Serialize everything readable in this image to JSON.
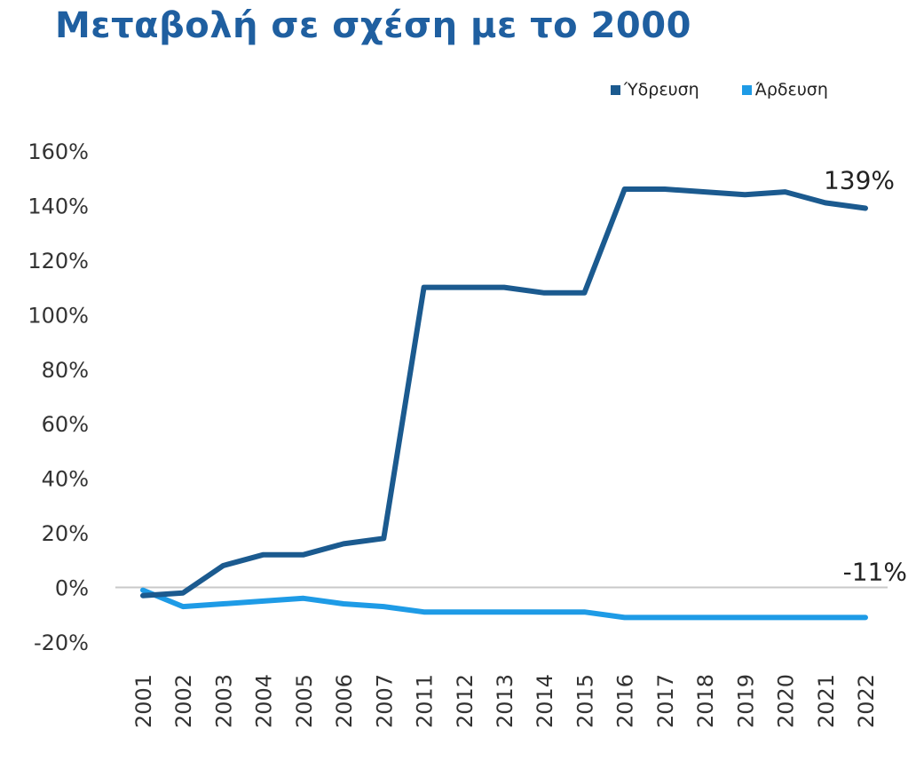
{
  "chart_data": {
    "type": "line",
    "title": "Μεταβολή σε σχέση με το 2000",
    "categories": [
      "2001",
      "2002",
      "2003",
      "2004",
      "2005",
      "2006",
      "2007",
      "2011",
      "2012",
      "2013",
      "2014",
      "2015",
      "2016",
      "2017",
      "2018",
      "2019",
      "2020",
      "2021",
      "2022"
    ],
    "series": [
      {
        "name": "Ύδρευση",
        "color": "#1b5a8f",
        "values": [
          -3,
          -2,
          8,
          12,
          12,
          16,
          18,
          110,
          110,
          110,
          108,
          108,
          146,
          146,
          145,
          144,
          145,
          141,
          139
        ],
        "end_label": "139%"
      },
      {
        "name": "Άρδευση",
        "color": "#1e9be6",
        "values": [
          -1,
          -7,
          -6,
          -5,
          -4,
          -6,
          -7,
          -9,
          -9,
          -9,
          -9,
          -9,
          -11,
          -11,
          -11,
          -11,
          -11,
          -11,
          -11
        ],
        "end_label": "-11%"
      }
    ],
    "ylim": [
      -20,
      160
    ],
    "yticks": [
      -20,
      0,
      20,
      40,
      60,
      80,
      100,
      120,
      140,
      160
    ],
    "ytick_labels": [
      "-20%",
      "0%",
      "20%",
      "40%",
      "60%",
      "80%",
      "100%",
      "120%",
      "140%",
      "160%"
    ],
    "zero_line": true,
    "grid": false,
    "legend_position": "top-right"
  }
}
